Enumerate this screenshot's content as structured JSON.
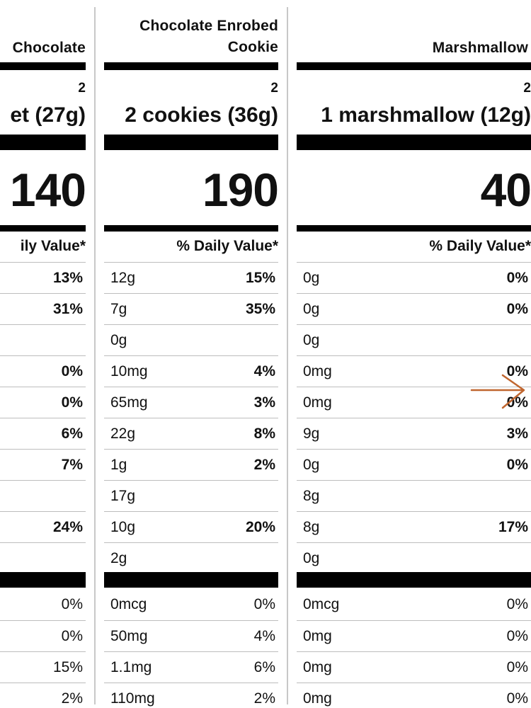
{
  "columns": [
    {
      "title_lines": [
        "Chocolate"
      ],
      "servings": "",
      "serving_size": "et (27g)",
      "calories": "140",
      "dv_header": "ily Value*",
      "rows": [
        {
          "amount": "",
          "percent": "13%",
          "bold": true
        },
        {
          "amount": "",
          "percent": "31%",
          "bold": true
        },
        {
          "amount": "",
          "percent": "",
          "bold": true
        },
        {
          "amount": "",
          "percent": "0%",
          "bold": true
        },
        {
          "amount": "",
          "percent": "0%",
          "bold": true
        },
        {
          "amount": "",
          "percent": "6%",
          "bold": true
        },
        {
          "amount": "",
          "percent": "7%",
          "bold": true
        },
        {
          "amount": "",
          "percent": "",
          "bold": true
        },
        {
          "amount": "",
          "percent": "24%",
          "bold": true
        },
        {
          "amount": "",
          "percent": "",
          "bold": true
        }
      ],
      "micro_rows": [
        {
          "amount": "",
          "percent": "0%"
        },
        {
          "amount": "",
          "percent": "0%"
        },
        {
          "amount": "",
          "percent": "15%"
        },
        {
          "amount": "",
          "percent": "2%"
        }
      ]
    },
    {
      "title_lines": [
        "Chocolate Enrobed",
        "Cookie"
      ],
      "servings": "2",
      "serving_size": "2 cookies (36g)",
      "calories": "190",
      "dv_header": "% Daily Value*",
      "rows": [
        {
          "amount": "12g",
          "percent": "15%",
          "bold": true
        },
        {
          "amount": "7g",
          "percent": "35%",
          "bold": true
        },
        {
          "amount": "0g",
          "percent": "",
          "bold": true
        },
        {
          "amount": "10mg",
          "percent": "4%",
          "bold": true
        },
        {
          "amount": "65mg",
          "percent": "3%",
          "bold": true
        },
        {
          "amount": "22g",
          "percent": "8%",
          "bold": true
        },
        {
          "amount": "1g",
          "percent": "2%",
          "bold": true
        },
        {
          "amount": "17g",
          "percent": "",
          "bold": true
        },
        {
          "amount": "10g",
          "percent": "20%",
          "bold": true
        },
        {
          "amount": "2g",
          "percent": "",
          "bold": true
        }
      ],
      "micro_rows": [
        {
          "amount": "0mcg",
          "percent": "0%"
        },
        {
          "amount": "50mg",
          "percent": "4%"
        },
        {
          "amount": "1.1mg",
          "percent": "6%"
        },
        {
          "amount": "110mg",
          "percent": "2%"
        }
      ]
    },
    {
      "title_lines": [
        "Marshmallow"
      ],
      "servings": "2",
      "serving_size": "1 marshmallow (12g)",
      "calories": "40",
      "dv_header": "% Daily Value*",
      "rows": [
        {
          "amount": "0g",
          "percent": "0%",
          "bold": true
        },
        {
          "amount": "0g",
          "percent": "0%",
          "bold": true
        },
        {
          "amount": "0g",
          "percent": "",
          "bold": true
        },
        {
          "amount": "0mg",
          "percent": "0%",
          "bold": true
        },
        {
          "amount": "0mg",
          "percent": "0%",
          "bold": true
        },
        {
          "amount": "9g",
          "percent": "3%",
          "bold": true
        },
        {
          "amount": "0g",
          "percent": "0%",
          "bold": true
        },
        {
          "amount": "8g",
          "percent": "",
          "bold": true
        },
        {
          "amount": "8g",
          "percent": "17%",
          "bold": true
        },
        {
          "amount": "0g",
          "percent": "",
          "bold": true
        }
      ],
      "micro_rows": [
        {
          "amount": "0mcg",
          "percent": "0%"
        },
        {
          "amount": "0mg",
          "percent": "0%"
        },
        {
          "amount": "0mg",
          "percent": "0%"
        },
        {
          "amount": "0mg",
          "percent": "0%"
        }
      ]
    }
  ],
  "first_column_servings": "2",
  "annotation": {
    "icon": "arrow-right-icon",
    "color": "#c0662f"
  }
}
